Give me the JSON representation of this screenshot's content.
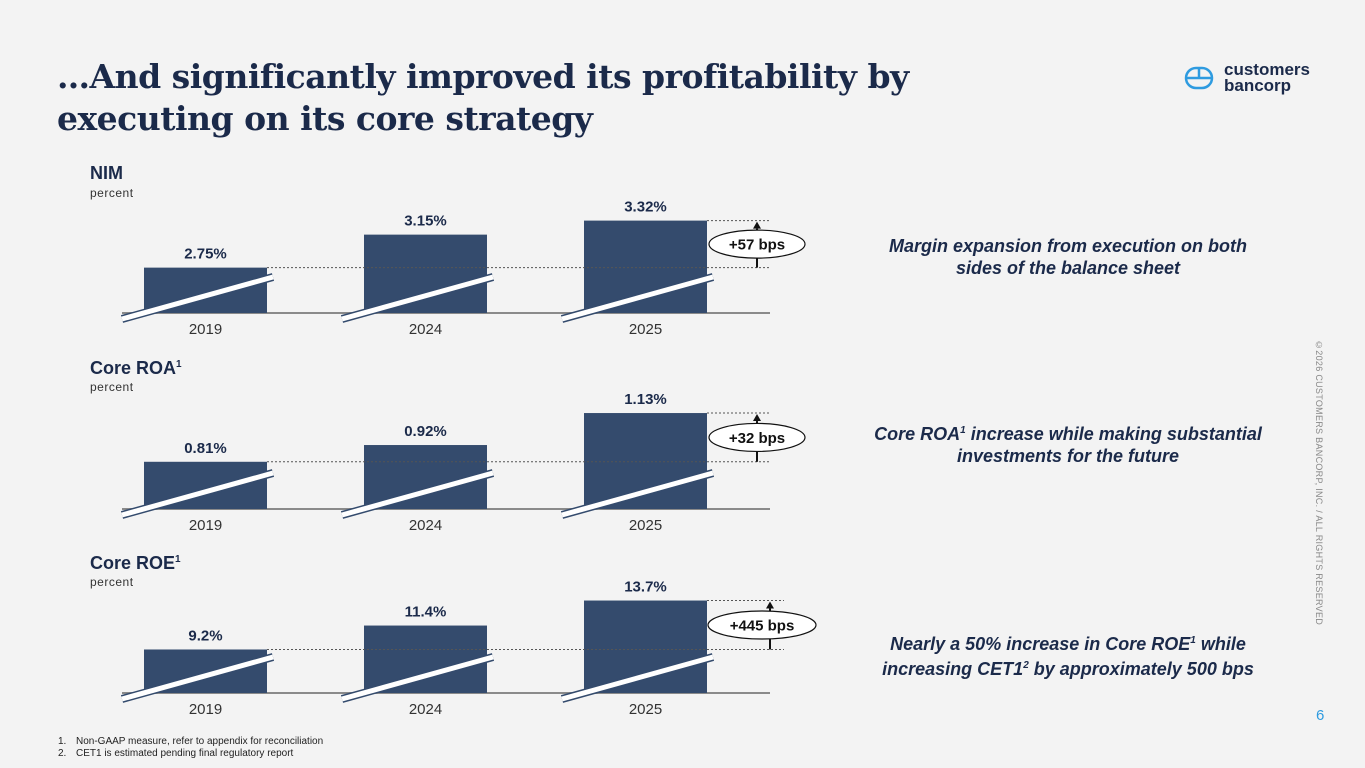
{
  "title": "…And significantly improved its profitability by executing on its core strategy",
  "logo": {
    "line1": "customers",
    "line2": "bancorp"
  },
  "colors": {
    "bar": "#344b6d",
    "navy": "#1b2a4a",
    "accent": "#2e9be0",
    "background": "#f3f3f3"
  },
  "panels": [
    {
      "title": "NIM",
      "sup": "",
      "subtitle": "percent",
      "note": "Margin expansion from execution on both sides of the balance sheet"
    },
    {
      "title": "Core ROA",
      "sup": "1",
      "subtitle": "percent",
      "note_a": "Core ROA",
      "note_sup": "1",
      "note_b": " increase while making substantial investments for the future"
    },
    {
      "title": "Core ROE",
      "sup": "1",
      "subtitle": "percent",
      "note_a": "Nearly a 50% increase in Core ROE",
      "note_sup": "1",
      "note_b": " while increasing CET1",
      "note_sup2": "2",
      "note_c": " by approximately 500 bps"
    }
  ],
  "chart_data": [
    {
      "type": "bar",
      "title": "NIM",
      "ylabel": "percent",
      "categories": [
        "2019",
        "2024",
        "2025"
      ],
      "values": [
        2.75,
        3.15,
        3.32
      ],
      "labels": [
        "2.75%",
        "3.15%",
        "3.32%"
      ],
      "ylim": [
        2.2,
        3.4
      ],
      "broken_axis": true,
      "annotation": "+57 bps"
    },
    {
      "type": "bar",
      "title": "Core ROA",
      "ylabel": "percent",
      "categories": [
        "2019",
        "2024",
        "2025"
      ],
      "values": [
        0.81,
        0.92,
        1.13
      ],
      "labels": [
        "0.81%",
        "0.92%",
        "1.13%"
      ],
      "ylim": [
        0.5,
        1.15
      ],
      "broken_axis": true,
      "annotation": "+32 bps"
    },
    {
      "type": "bar",
      "title": "Core ROE",
      "ylabel": "percent",
      "categories": [
        "2019",
        "2024",
        "2025"
      ],
      "values": [
        9.2,
        11.4,
        13.7
      ],
      "labels": [
        "9.2%",
        "11.4%",
        "13.7%"
      ],
      "ylim": [
        5.2,
        14.3
      ],
      "broken_axis": true,
      "annotation": "+445 bps"
    }
  ],
  "footnotes": [
    {
      "num": "1.",
      "text": "Non-GAAP measure, refer to appendix for reconciliation"
    },
    {
      "num": "2.",
      "text": "CET1 is estimated pending final regulatory report"
    }
  ],
  "copyright": "©2026 CUSTOMERS BANCORP, INC. / ALL RIGHTS RESERVED",
  "page_number": "6"
}
